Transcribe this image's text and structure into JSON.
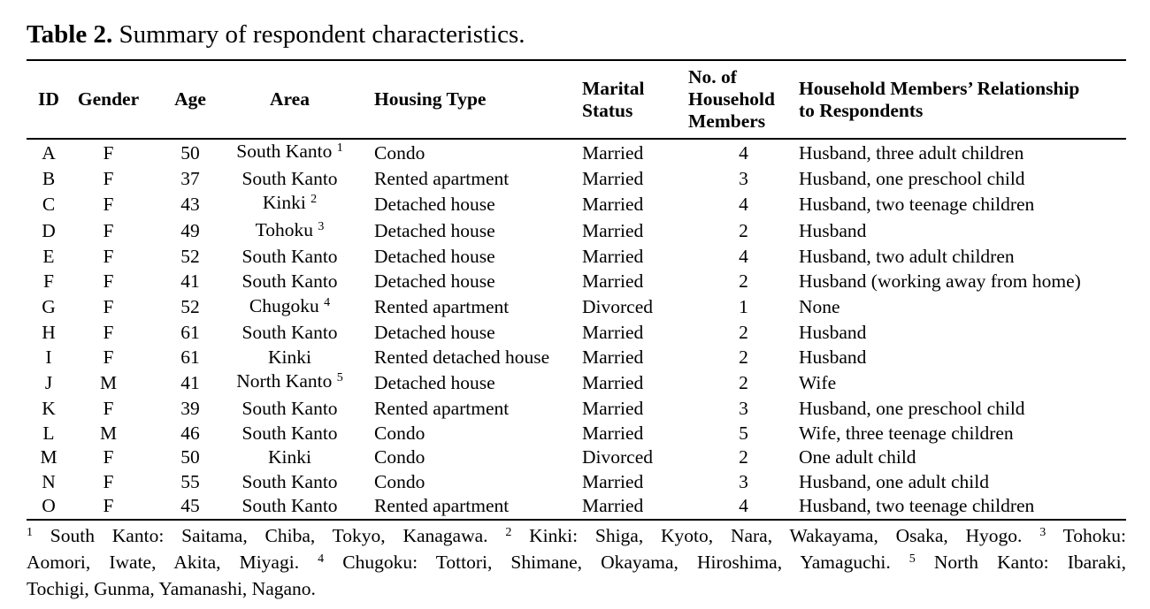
{
  "caption": {
    "label": "Table 2.",
    "text": "Summary of respondent characteristics."
  },
  "table": {
    "columns": [
      {
        "key": "id",
        "label": "ID"
      },
      {
        "key": "gender",
        "label": "Gender"
      },
      {
        "key": "age",
        "label": "Age"
      },
      {
        "key": "area",
        "label": "Area"
      },
      {
        "key": "housing",
        "label": "Housing Type"
      },
      {
        "key": "marital",
        "label": "Marital\nStatus"
      },
      {
        "key": "members",
        "label": "No. of\nHousehold\nMembers"
      },
      {
        "key": "relationship",
        "label": "Household Members’ Relationship\nto Respondents"
      }
    ],
    "rows": [
      {
        "id": "A",
        "gender": "F",
        "age": "50",
        "area": "South Kanto",
        "area_sup": "1",
        "housing": "Condo",
        "marital": "Married",
        "members": "4",
        "relationship": "Husband, three adult children"
      },
      {
        "id": "B",
        "gender": "F",
        "age": "37",
        "area": "South Kanto",
        "area_sup": null,
        "housing": "Rented apartment",
        "marital": "Married",
        "members": "3",
        "relationship": "Husband, one preschool child"
      },
      {
        "id": "C",
        "gender": "F",
        "age": "43",
        "area": "Kinki",
        "area_sup": "2",
        "housing": "Detached house",
        "marital": "Married",
        "members": "4",
        "relationship": "Husband, two teenage children"
      },
      {
        "id": "D",
        "gender": "F",
        "age": "49",
        "area": "Tohoku",
        "area_sup": "3",
        "housing": "Detached house",
        "marital": "Married",
        "members": "2",
        "relationship": "Husband"
      },
      {
        "id": "E",
        "gender": "F",
        "age": "52",
        "area": "South Kanto",
        "area_sup": null,
        "housing": "Detached house",
        "marital": "Married",
        "members": "4",
        "relationship": "Husband, two adult children"
      },
      {
        "id": "F",
        "gender": "F",
        "age": "41",
        "area": "South Kanto",
        "area_sup": null,
        "housing": "Detached house",
        "marital": "Married",
        "members": "2",
        "relationship": "Husband (working away from home)"
      },
      {
        "id": "G",
        "gender": "F",
        "age": "52",
        "area": "Chugoku",
        "area_sup": "4",
        "housing": "Rented apartment",
        "marital": "Divorced",
        "members": "1",
        "relationship": "None"
      },
      {
        "id": "H",
        "gender": "F",
        "age": "61",
        "area": "South Kanto",
        "area_sup": null,
        "housing": "Detached house",
        "marital": "Married",
        "members": "2",
        "relationship": "Husband"
      },
      {
        "id": "I",
        "gender": "F",
        "age": "61",
        "area": "Kinki",
        "area_sup": null,
        "housing": "Rented detached house",
        "marital": "Married",
        "members": "2",
        "relationship": "Husband"
      },
      {
        "id": "J",
        "gender": "M",
        "age": "41",
        "area": "North Kanto",
        "area_sup": "5",
        "housing": "Detached house",
        "marital": "Married",
        "members": "2",
        "relationship": "Wife"
      },
      {
        "id": "K",
        "gender": "F",
        "age": "39",
        "area": "South Kanto",
        "area_sup": null,
        "housing": "Rented apartment",
        "marital": "Married",
        "members": "3",
        "relationship": "Husband, one preschool child"
      },
      {
        "id": "L",
        "gender": "M",
        "age": "46",
        "area": "South Kanto",
        "area_sup": null,
        "housing": "Condo",
        "marital": "Married",
        "members": "5",
        "relationship": "Wife, three teenage children"
      },
      {
        "id": "M",
        "gender": "F",
        "age": "50",
        "area": "Kinki",
        "area_sup": null,
        "housing": "Condo",
        "marital": "Divorced",
        "members": "2",
        "relationship": "One adult child"
      },
      {
        "id": "N",
        "gender": "F",
        "age": "55",
        "area": "South Kanto",
        "area_sup": null,
        "housing": "Condo",
        "marital": "Married",
        "members": "3",
        "relationship": "Husband, one adult child"
      },
      {
        "id": "O",
        "gender": "F",
        "age": "45",
        "area": "South Kanto",
        "area_sup": null,
        "housing": "Rented apartment",
        "marital": "Married",
        "members": "4",
        "relationship": "Husband, two teenage children"
      }
    ]
  },
  "footnote_lines": [
    {
      "justify": true,
      "segments": [
        {
          "sup": "1"
        },
        {
          "text": " South Kanto: Saitama, Chiba, Tokyo, Kanagawa. "
        },
        {
          "sup": "2"
        },
        {
          "text": " Kinki: Shiga, Kyoto, Nara, Wakayama, Osaka, Hyogo. "
        },
        {
          "sup": "3"
        },
        {
          "text": " Tohoku:"
        }
      ]
    },
    {
      "justify": true,
      "segments": [
        {
          "text": "Aomori, Iwate, Akita, Miyagi. "
        },
        {
          "sup": "4"
        },
        {
          "text": " Chugoku: Tottori, Shimane, Okayama, Hiroshima, Yamaguchi. "
        },
        {
          "sup": "5"
        },
        {
          "text": " North Kanto: Ibaraki,"
        }
      ]
    },
    {
      "justify": false,
      "segments": [
        {
          "text": "Tochigi, Gunma, Yamanashi, Nagano."
        }
      ]
    }
  ]
}
